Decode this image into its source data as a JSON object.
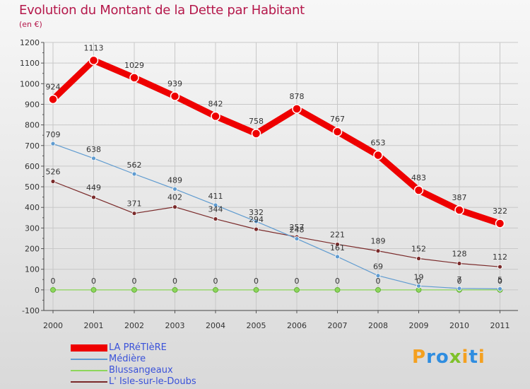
{
  "page": {
    "title": "Evolution du Montant de la Dette par Habitant",
    "subtitle": "(en €)",
    "logo": "Proxiti"
  },
  "chart_data": {
    "type": "line",
    "title": "Evolution du Montant de la Dette par Habitant",
    "subtitle": "(en €)",
    "xlabel": "",
    "ylabel": "",
    "x": [
      "2000",
      "2001",
      "2002",
      "2003",
      "2004",
      "2005",
      "2006",
      "2007",
      "2008",
      "2009",
      "2010",
      "2011"
    ],
    "ylim": [
      -100,
      1200
    ],
    "yticks": [
      "-100",
      "0",
      "100",
      "200",
      "300",
      "400",
      "500",
      "600",
      "700",
      "800",
      "900",
      "1000",
      "1100",
      "1200"
    ],
    "grid": true,
    "legend_position": "bottom-left",
    "series": [
      {
        "name": "LA PRéTIèRE",
        "color": "#ee0000",
        "values": [
          924,
          1113,
          1029,
          939,
          842,
          758,
          878,
          767,
          653,
          483,
          387,
          322
        ],
        "labels": [
          "924",
          "1113",
          "1029",
          "939",
          "842",
          "758",
          "878",
          "767",
          "653",
          "483",
          "387",
          "322"
        ]
      },
      {
        "name": "Médière",
        "color": "#5f9bd0",
        "values": [
          709,
          638,
          562,
          489,
          411,
          332,
          248,
          161,
          69,
          19,
          7,
          5
        ],
        "labels": [
          "709",
          "638",
          "562",
          "489",
          "411",
          "332",
          "248",
          "161",
          "69",
          "19",
          "7",
          "5"
        ]
      },
      {
        "name": "Blussangeaux",
        "color": "#8dd65b",
        "values": [
          0,
          0,
          0,
          0,
          0,
          0,
          0,
          0,
          0,
          0,
          0,
          0
        ],
        "labels": [
          "0",
          "0",
          "0",
          "0",
          "0",
          "0",
          "0",
          "0",
          "0",
          "0",
          "0",
          "0"
        ]
      },
      {
        "name": "L' Isle-sur-le-Doubs",
        "color": "#7a2a2a",
        "values": [
          526,
          449,
          371,
          402,
          344,
          294,
          257,
          221,
          189,
          152,
          128,
          112
        ],
        "labels": [
          "526",
          "449",
          "371",
          "402",
          "344",
          "294",
          "257",
          "221",
          "189",
          "152",
          "128",
          "112"
        ]
      }
    ]
  }
}
